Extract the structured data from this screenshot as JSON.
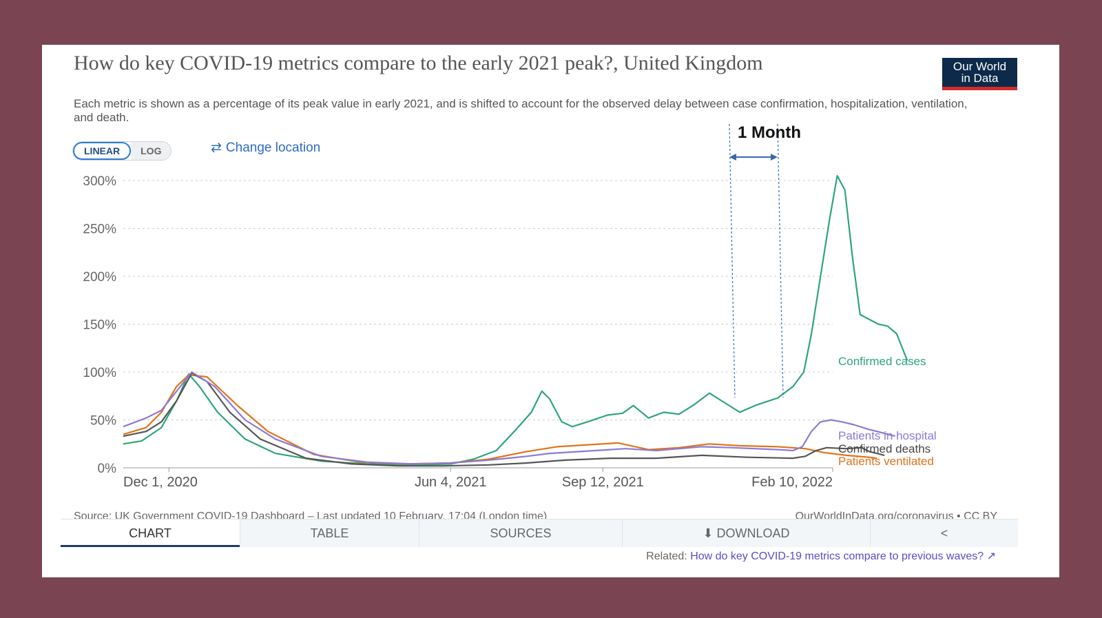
{
  "title": "How do key COVID-19 metrics compare to the early 2021 peak?, United Kingdom",
  "subtitle": "Each metric is shown as a percentage of its peak value in early 2021, and is shifted to account for the observed delay between case confirmation, hospitalization, ventilation, and death.",
  "logo_line1": "Our World",
  "logo_line2": "in Data",
  "scale_linear": "LINEAR",
  "scale_log": "LOG",
  "change_location": "Change location",
  "annotation": "1 Month",
  "source": "Source: UK Government COVID-19 Dashboard – Last updated 10 February, 17:04 (London time)",
  "credit": "OurWorldInData.org/coronavirus • CC BY",
  "tabs": {
    "chart": "CHART",
    "table": "TABLE",
    "sources": "SOURCES",
    "download": "DOWNLOAD"
  },
  "related_label": "Related:",
  "related_link": "How do key COVID-19 metrics compare to previous waves?",
  "colors": {
    "cases": "#2ca57a",
    "hospital": "#8c7ad6",
    "deaths": "#555555",
    "ventilated": "#e0731b",
    "background": "#7a4453",
    "annotation": "#2d6bc4"
  },
  "chart_data": {
    "type": "line",
    "x_start": "2020-11-01",
    "x_end": "2022-02-10",
    "xticks": [
      {
        "label": "Dec 1, 2020",
        "date": "2020-12-01"
      },
      {
        "label": "Jun 4, 2021",
        "date": "2021-06-04"
      },
      {
        "label": "Sep 12, 2021",
        "date": "2021-09-12"
      },
      {
        "label": "Feb 10, 2022",
        "date": "2022-02-10"
      }
    ],
    "yticks": [
      0,
      50,
      100,
      150,
      200,
      250,
      300
    ],
    "ytick_labels": [
      "0%",
      "50%",
      "100%",
      "150%",
      "200%",
      "250%",
      "300%"
    ],
    "ylim": [
      0,
      310
    ],
    "series": [
      {
        "name": "Confirmed cases",
        "key": "cases",
        "points": [
          [
            0,
            25
          ],
          [
            12,
            28
          ],
          [
            25,
            42
          ],
          [
            35,
            70
          ],
          [
            43,
            98
          ],
          [
            50,
            85
          ],
          [
            62,
            58
          ],
          [
            80,
            30
          ],
          [
            100,
            15
          ],
          [
            130,
            7
          ],
          [
            160,
            4
          ],
          [
            190,
            3
          ],
          [
            215,
            4
          ],
          [
            230,
            9
          ],
          [
            245,
            18
          ],
          [
            258,
            40
          ],
          [
            268,
            58
          ],
          [
            275,
            80
          ],
          [
            280,
            72
          ],
          [
            288,
            48
          ],
          [
            295,
            43
          ],
          [
            305,
            48
          ],
          [
            318,
            55
          ],
          [
            328,
            57
          ],
          [
            335,
            65
          ],
          [
            345,
            52
          ],
          [
            355,
            58
          ],
          [
            365,
            56
          ],
          [
            375,
            66
          ],
          [
            385,
            78
          ],
          [
            395,
            68
          ],
          [
            405,
            58
          ],
          [
            415,
            65
          ],
          [
            430,
            73
          ],
          [
            440,
            85
          ],
          [
            447,
            100
          ],
          [
            452,
            140
          ],
          [
            458,
            200
          ],
          [
            464,
            260
          ],
          [
            469,
            305
          ],
          [
            474,
            290
          ],
          [
            479,
            220
          ],
          [
            484,
            160
          ],
          [
            490,
            155
          ],
          [
            496,
            150
          ],
          [
            502,
            148
          ],
          [
            508,
            140
          ],
          [
            515,
            112
          ]
        ]
      },
      {
        "name": "Patients in hospital",
        "key": "hospital",
        "points": [
          [
            0,
            43
          ],
          [
            15,
            52
          ],
          [
            25,
            60
          ],
          [
            35,
            80
          ],
          [
            45,
            100
          ],
          [
            60,
            85
          ],
          [
            80,
            50
          ],
          [
            100,
            30
          ],
          [
            130,
            12
          ],
          [
            160,
            6
          ],
          [
            190,
            4
          ],
          [
            215,
            5
          ],
          [
            240,
            8
          ],
          [
            265,
            12
          ],
          [
            280,
            15
          ],
          [
            300,
            17
          ],
          [
            330,
            20
          ],
          [
            350,
            18
          ],
          [
            380,
            22
          ],
          [
            400,
            21
          ],
          [
            430,
            19
          ],
          [
            440,
            18
          ],
          [
            446,
            22
          ],
          [
            452,
            38
          ],
          [
            458,
            48
          ],
          [
            465,
            50
          ],
          [
            472,
            48
          ],
          [
            480,
            45
          ],
          [
            490,
            40
          ],
          [
            500,
            36
          ],
          [
            507,
            33
          ]
        ]
      },
      {
        "name": "Confirmed deaths",
        "key": "deaths",
        "points": [
          [
            0,
            33
          ],
          [
            15,
            38
          ],
          [
            25,
            48
          ],
          [
            35,
            70
          ],
          [
            45,
            99
          ],
          [
            55,
            90
          ],
          [
            70,
            58
          ],
          [
            90,
            30
          ],
          [
            120,
            10
          ],
          [
            150,
            4
          ],
          [
            180,
            2
          ],
          [
            210,
            2
          ],
          [
            240,
            3
          ],
          [
            265,
            5
          ],
          [
            290,
            8
          ],
          [
            320,
            10
          ],
          [
            350,
            10
          ],
          [
            380,
            13
          ],
          [
            410,
            11
          ],
          [
            440,
            10
          ],
          [
            448,
            12
          ],
          [
            455,
            18
          ],
          [
            462,
            21
          ],
          [
            475,
            20
          ],
          [
            485,
            21
          ],
          [
            490,
            17
          ],
          [
            495,
            15
          ],
          [
            500,
            13
          ]
        ]
      },
      {
        "name": "Patients ventilated",
        "key": "ventilated",
        "points": [
          [
            0,
            35
          ],
          [
            15,
            42
          ],
          [
            25,
            58
          ],
          [
            35,
            85
          ],
          [
            43,
            97
          ],
          [
            55,
            95
          ],
          [
            75,
            65
          ],
          [
            95,
            38
          ],
          [
            125,
            14
          ],
          [
            155,
            6
          ],
          [
            185,
            4
          ],
          [
            215,
            5
          ],
          [
            240,
            9
          ],
          [
            265,
            17
          ],
          [
            285,
            22
          ],
          [
            305,
            24
          ],
          [
            325,
            26
          ],
          [
            345,
            19
          ],
          [
            365,
            21
          ],
          [
            385,
            25
          ],
          [
            405,
            23
          ],
          [
            430,
            22
          ],
          [
            448,
            20
          ],
          [
            460,
            16
          ],
          [
            475,
            13
          ],
          [
            490,
            11
          ],
          [
            495,
            10
          ]
        ]
      }
    ]
  }
}
